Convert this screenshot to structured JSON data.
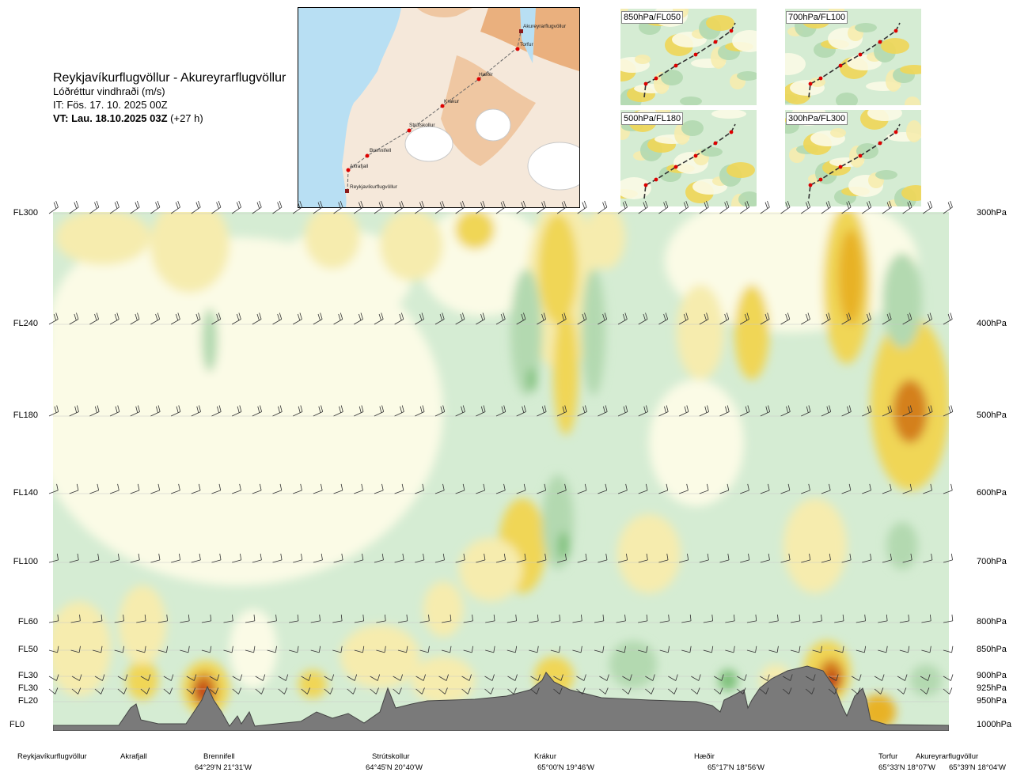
{
  "header": {
    "route": "Reykjavíkurflugvöllur - Akureyrarflugvöllur",
    "parameter": "Lóðréttur vindhraði (m/s)",
    "issue_time": "IT: Fös. 17. 10. 2025 00Z",
    "valid_label": "VT: Lau. 18.10.2025 03Z",
    "valid_offset": "(+27 h)"
  },
  "map": {
    "places": [
      {
        "name": "Akureyrarflugvöllur"
      },
      {
        "name": "Torfur"
      },
      {
        "name": "Hæðir"
      },
      {
        "name": "Krákur"
      },
      {
        "name": "Strútskollur"
      },
      {
        "name": "Brennifell"
      },
      {
        "name": "Akrafjall"
      },
      {
        "name": "Reykjavíkurflugvöllur"
      }
    ],
    "colors": {
      "sea": "#b8dff3",
      "land_low": "#f4e4d4",
      "land_high": "#e8a874",
      "ice": "#ffffff",
      "route": "#666666",
      "point": "#dd0000"
    }
  },
  "thumbnails": [
    {
      "label": "850hPa/FL050"
    },
    {
      "label": "700hPa/FL100"
    },
    {
      "label": "500hPa/FL180"
    },
    {
      "label": "300hPa/FL300"
    }
  ],
  "levels": [
    {
      "fl": "FL300",
      "hpa": "300hPa"
    },
    {
      "fl": "FL240",
      "hpa": "400hPa"
    },
    {
      "fl": "FL180",
      "hpa": "500hPa"
    },
    {
      "fl": "FL140",
      "hpa": "600hPa"
    },
    {
      "fl": "FL100",
      "hpa": "700hPa"
    },
    {
      "fl": "FL60",
      "hpa": "800hPa"
    },
    {
      "fl": "FL50",
      "hpa": "850hPa"
    },
    {
      "fl": "FL30",
      "hpa": "900hPa"
    },
    {
      "fl": "FL30",
      "hpa": "925hPa"
    },
    {
      "fl": "FL20",
      "hpa": "950hPa"
    },
    {
      "fl": "FL0",
      "hpa": "1000hPa"
    }
  ],
  "locations": [
    {
      "name": "Reykjavíkurflugvöllur",
      "coord": ""
    },
    {
      "name": "Akrafjall",
      "coord": ""
    },
    {
      "name": "Brennifell",
      "coord": "64°29'N 21°31'W"
    },
    {
      "name": "Strútskollur",
      "coord": "64°45'N 20°40'W"
    },
    {
      "name": "Krákur",
      "coord": "65°00'N 19°46'W"
    },
    {
      "name": "Hæðir",
      "coord": "65°17'N 18°56'W"
    },
    {
      "name": "Torfur",
      "coord": "65°33'N 18°07'W"
    },
    {
      "name": "Akureyrarflugvöllur",
      "coord": "65°39'N 18°04'W"
    }
  ],
  "chart_data": {
    "type": "heatmap",
    "title": "Reykjavíkurflugvöllur - Akureyrarflugvöllur",
    "variable": "Lóðréttur vindhraði (m/s)",
    "y_axis_left": [
      "FL300",
      "FL240",
      "FL180",
      "FL140",
      "FL100",
      "FL60",
      "FL50",
      "FL30",
      "FL30",
      "FL20",
      "FL0"
    ],
    "y_axis_right": [
      "300hPa",
      "400hPa",
      "500hPa",
      "600hPa",
      "700hPa",
      "800hPa",
      "850hPa",
      "900hPa",
      "925hPa",
      "950hPa",
      "1000hPa"
    ],
    "x_locations": [
      "Reykjavíkurflugvöllur",
      "Akrafjall",
      "Brennifell",
      "Strútskollur",
      "Krákur",
      "Hæðir",
      "Torfur",
      "Akureyrarflugvöllur"
    ],
    "colors": {
      "down_weak": "#d5ecd3",
      "down_mid": "#b3d9b0",
      "down_strong": "#7fc17c",
      "neutral": "#fbfbe6",
      "up_weak": "#f6ecae",
      "up_mid": "#f0d656",
      "up_strong": "#e8b225",
      "up_extreme": "#d4801f",
      "up_max": "#c0391b",
      "terrain": "#7a7a7a"
    }
  }
}
